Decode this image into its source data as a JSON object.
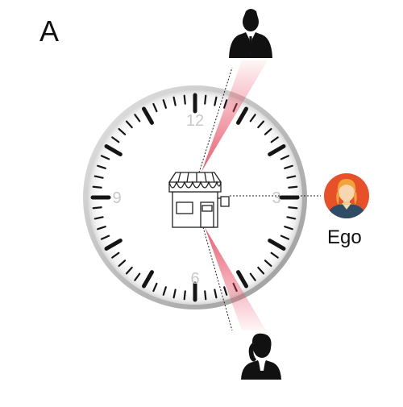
{
  "panel": {
    "label": "A"
  },
  "clock": {
    "numerals": [
      "12",
      "3",
      "6",
      "9"
    ],
    "numeral_color": "#c8c8c8",
    "tick_color": "#151515",
    "bezel_color": "#b8b8b8"
  },
  "ego": {
    "label": "Ego",
    "avatar_bg": "#e8502a",
    "avatar_shirt": "#2f4c66",
    "hair": "#f2a33a"
  },
  "figures": {
    "top": {
      "icon": "businessman-icon"
    },
    "bottom": {
      "icon": "businesswoman-icon"
    }
  },
  "store": {
    "icon": "storefront-icon"
  },
  "colors": {
    "cone": "#e84a5f",
    "figure": "#111111"
  }
}
